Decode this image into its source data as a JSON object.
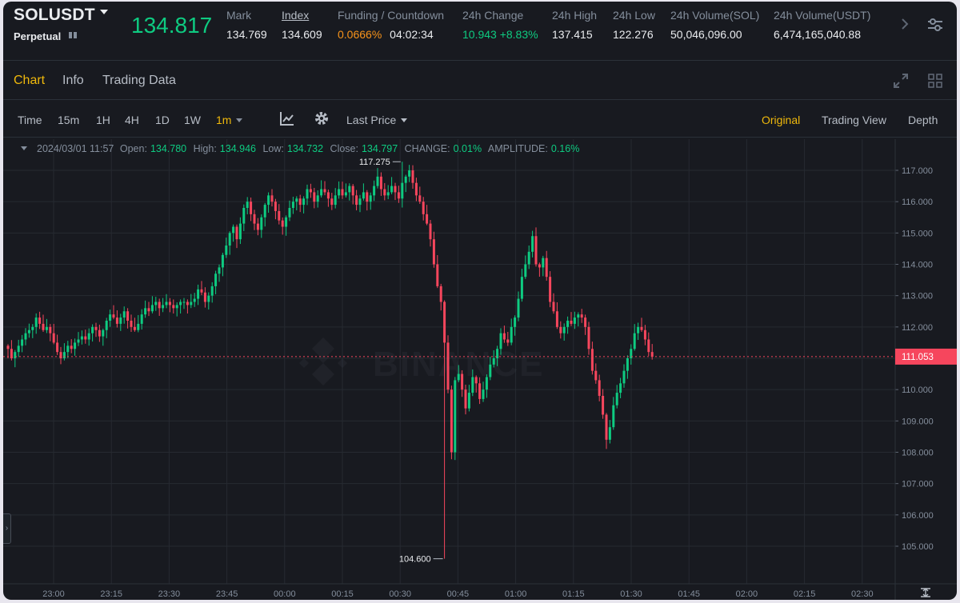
{
  "ticker": {
    "symbol": "SOLUSDT",
    "contract_type": "Perpetual",
    "last_price": "134.817",
    "stats": [
      {
        "label": "Mark",
        "value": "134.769"
      },
      {
        "label": "Index",
        "value": "134.609"
      },
      {
        "label": "Funding / Countdown",
        "value": "0.0666%",
        "value2": "04:02:34"
      },
      {
        "label": "24h Change",
        "value": "10.943 +8.83%"
      },
      {
        "label": "24h High",
        "value": "137.415"
      },
      {
        "label": "24h Low",
        "value": "122.276"
      },
      {
        "label": "24h Volume(SOL)",
        "value": "50,046,096.00"
      },
      {
        "label": "24h Volume(USDT)",
        "value": "6,474,165,040.88"
      }
    ]
  },
  "tabs": [
    "Chart",
    "Info",
    "Trading Data"
  ],
  "active_tab": "Chart",
  "toolbar": {
    "intervals": [
      "Time",
      "15m",
      "1H",
      "4H",
      "1D",
      "1W",
      "1m"
    ],
    "active_interval": "1m",
    "price_type": "Last Price",
    "views": [
      "Original",
      "Trading View",
      "Depth"
    ],
    "active_view": "Original"
  },
  "ohlc": {
    "datetime": "2024/03/01 11:57",
    "open_label": "Open:",
    "open": "134.780",
    "high_label": "High:",
    "high": "134.946",
    "low_label": "Low:",
    "low": "134.732",
    "close_label": "Close:",
    "close": "134.797",
    "change_label": "CHANGE:",
    "change": "0.01%",
    "amplitude_label": "AMPLITUDE:",
    "amplitude": "0.16%"
  },
  "colors": {
    "background": "#181a20",
    "up": "#0ecb81",
    "down": "#f6465d",
    "accent": "#f0b90b",
    "grid": "#262a31"
  },
  "chart_data": {
    "type": "candlestick",
    "watermark": "BINANCE",
    "ylim": [
      104.6,
      117.4
    ],
    "y_ticks": [
      "117.000",
      "116.000",
      "115.000",
      "114.000",
      "113.000",
      "112.000",
      "111.000",
      "110.000",
      "109.000",
      "108.000",
      "107.000",
      "106.000",
      "105.000"
    ],
    "x_ticks": [
      "23:00",
      "23:15",
      "23:30",
      "23:45",
      "00:00",
      "00:15",
      "00:30",
      "00:45",
      "01:00",
      "01:15",
      "01:30",
      "01:45",
      "02:00",
      "02:15",
      "02:30"
    ],
    "current_price": "111.053",
    "max_label": "117.275",
    "min_label": "104.600",
    "closes": [
      111.3,
      111.0,
      111.2,
      111.4,
      111.6,
      111.8,
      111.9,
      112.0,
      112.3,
      112.1,
      111.9,
      112.0,
      111.8,
      111.5,
      111.2,
      111.0,
      111.2,
      111.4,
      111.3,
      111.5,
      111.6,
      111.7,
      111.6,
      111.8,
      112.0,
      111.9,
      111.7,
      111.9,
      112.2,
      112.4,
      112.3,
      112.1,
      112.3,
      112.5,
      112.2,
      112.0,
      111.9,
      112.1,
      112.4,
      112.6,
      112.5,
      112.7,
      112.8,
      112.6,
      112.7,
      112.8,
      112.7,
      112.6,
      112.7,
      112.8,
      112.8,
      112.7,
      112.8,
      112.9,
      113.2,
      113.1,
      112.8,
      113.0,
      113.3,
      113.7,
      113.9,
      114.3,
      114.6,
      115.0,
      115.2,
      114.8,
      115.3,
      115.8,
      116.0,
      115.6,
      115.3,
      115.1,
      115.5,
      115.9,
      116.2,
      116.0,
      115.7,
      115.4,
      115.2,
      115.5,
      115.8,
      116.0,
      116.1,
      115.9,
      116.1,
      116.4,
      116.3,
      116.0,
      116.2,
      116.4,
      116.3,
      116.1,
      115.9,
      116.2,
      116.4,
      116.2,
      116.3,
      116.5,
      116.2,
      115.9,
      116.1,
      116.3,
      116.0,
      116.2,
      116.5,
      116.8,
      116.4,
      116.2,
      116.3,
      116.5,
      116.3,
      116.1,
      116.6,
      116.8,
      117.0,
      116.6,
      116.2,
      116.0,
      115.6,
      115.3,
      114.8,
      114.0,
      113.3,
      112.8,
      111.5,
      110.0,
      108.0,
      110.3,
      110.5,
      110.0,
      109.4,
      109.9,
      110.4,
      110.2,
      109.7,
      110.0,
      110.4,
      110.8,
      111.0,
      111.3,
      111.8,
      111.6,
      111.5,
      112.0,
      112.3,
      112.9,
      113.6,
      114.0,
      114.4,
      114.9,
      114.0,
      113.9,
      114.2,
      113.6,
      112.8,
      112.5,
      112.0,
      111.8,
      112.0,
      112.2,
      112.1,
      112.3,
      112.4,
      112.3,
      112.0,
      111.3,
      110.6,
      110.3,
      109.8,
      109.2,
      108.4,
      108.8,
      109.5,
      109.9,
      110.2,
      110.6,
      111.0,
      111.3,
      111.8,
      112.0,
      111.9,
      111.6,
      111.2,
      111.05
    ]
  }
}
